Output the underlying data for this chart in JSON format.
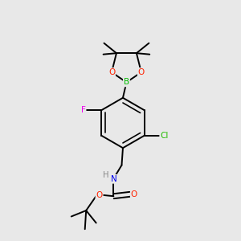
{
  "background_color": "#e8e8e8",
  "bond_color": "#000000",
  "atom_colors": {
    "B": "#00bb00",
    "O": "#ff2200",
    "F": "#ee00ee",
    "Cl": "#22bb00",
    "N": "#0000ee",
    "H": "#888888",
    "C": "#000000"
  },
  "bond_width": 1.4,
  "fig_bg": "#e8e8e8"
}
